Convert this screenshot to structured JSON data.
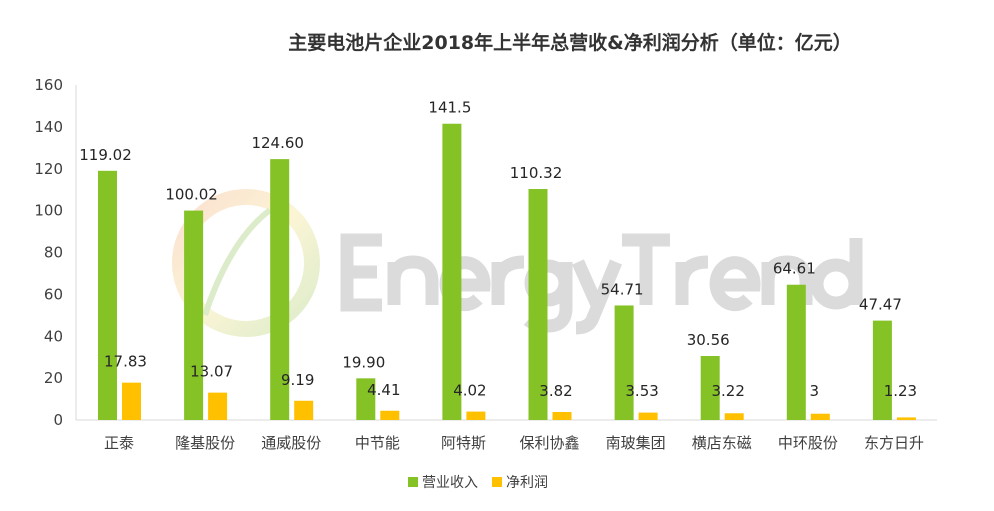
{
  "watermark": "EnergyTrend",
  "chart_data": {
    "type": "bar",
    "title": "主要电池片企业2018年上半年总营收&净利润分析（单位：亿元）",
    "xlabel": "",
    "ylabel": "",
    "ylim": [
      0,
      160
    ],
    "yticks": [
      0,
      20,
      40,
      60,
      80,
      100,
      120,
      140,
      160
    ],
    "grid": false,
    "legend_position": "bottom",
    "categories": [
      "正泰",
      "隆基股份",
      "通威股份",
      "中节能",
      "阿特斯",
      "保利协鑫",
      "南玻集团",
      "横店东磁",
      "中环股份",
      "东方日升"
    ],
    "series": [
      {
        "name": "营业收入",
        "color": "#84C226",
        "values": [
          119.02,
          100.02,
          124.6,
          19.9,
          141.5,
          110.32,
          54.71,
          30.56,
          64.61,
          47.47
        ],
        "labels": [
          "119.02",
          "100.02",
          "124.60",
          "19.90",
          "141.5",
          "110.32",
          "54.71",
          "30.56",
          "64.61",
          "47.47"
        ]
      },
      {
        "name": "净利润",
        "color": "#FFC000",
        "values": [
          17.83,
          13.07,
          9.19,
          4.41,
          4.02,
          3.82,
          3.53,
          3.22,
          3,
          1.23
        ],
        "labels": [
          "17.83",
          "13.07",
          "9.19",
          "4.41",
          "4.02",
          "3.82",
          "3.53",
          "3.22",
          "3",
          "1.23"
        ]
      }
    ]
  }
}
